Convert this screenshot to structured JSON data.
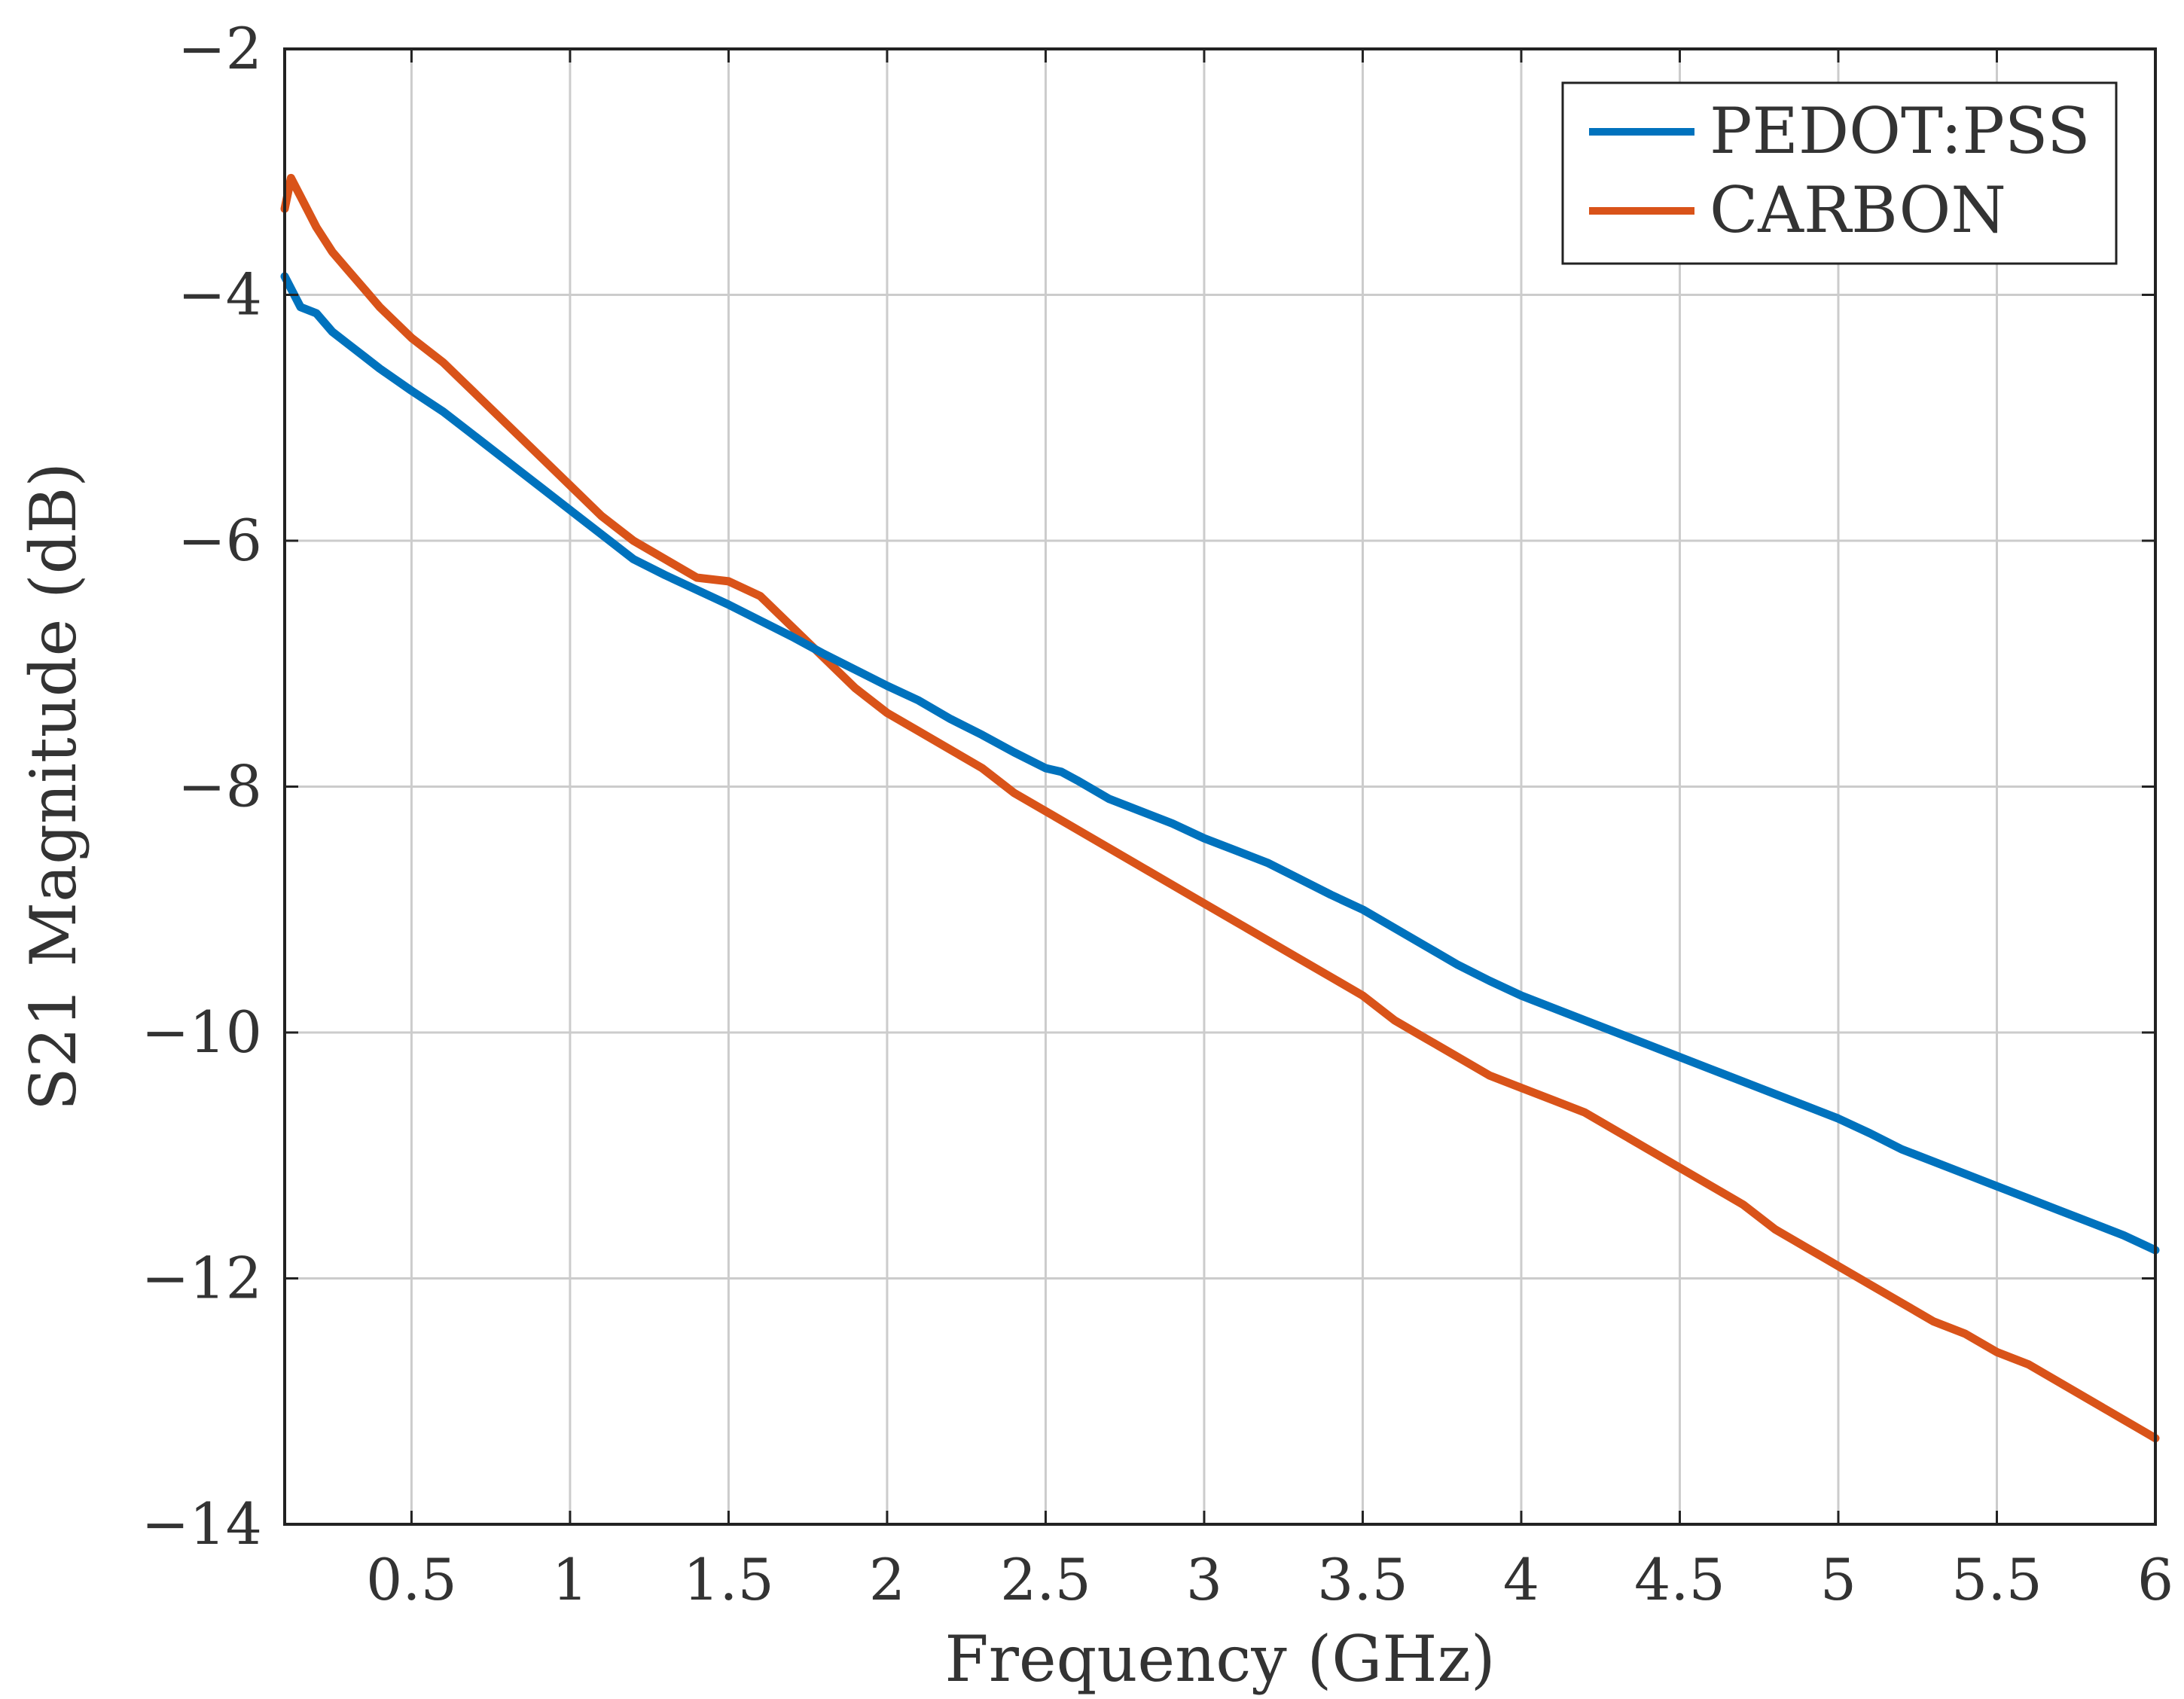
{
  "chart_data": {
    "type": "line",
    "title": "",
    "xlabel": "Frequency (GHz)",
    "ylabel": "S21 Magnitude (dB)",
    "xlim": [
      0.1,
      6
    ],
    "ylim": [
      -14,
      -2
    ],
    "grid": true,
    "legend_position": "top-right",
    "x_ticks": [
      {
        "value": 0.5,
        "label": "0.5"
      },
      {
        "value": 1,
        "label": "1"
      },
      {
        "value": 1.5,
        "label": "1.5"
      },
      {
        "value": 2,
        "label": "2"
      },
      {
        "value": 2.5,
        "label": "2.5"
      },
      {
        "value": 3,
        "label": "3"
      },
      {
        "value": 3.5,
        "label": "3.5"
      },
      {
        "value": 4,
        "label": "4"
      },
      {
        "value": 4.5,
        "label": "4.5"
      },
      {
        "value": 5,
        "label": "5"
      },
      {
        "value": 5.5,
        "label": "5.5"
      },
      {
        "value": 6,
        "label": "6"
      }
    ],
    "y_ticks": [
      {
        "value": -2,
        "label": "−2"
      },
      {
        "value": -4,
        "label": "−4"
      },
      {
        "value": -6,
        "label": "−6"
      },
      {
        "value": -8,
        "label": "−8"
      },
      {
        "value": -10,
        "label": "−10"
      },
      {
        "value": -12,
        "label": "−12"
      },
      {
        "value": -14,
        "label": "−14"
      }
    ],
    "series": [
      {
        "name": "PEDOT:PSS",
        "color": "#0072bd",
        "x": [
          0.1,
          0.15,
          0.2,
          0.25,
          0.3,
          0.35,
          0.4,
          0.5,
          0.6,
          0.7,
          0.8,
          0.9,
          1.0,
          1.1,
          1.2,
          1.3,
          1.4,
          1.5,
          1.6,
          1.7,
          1.8,
          1.9,
          2.0,
          2.1,
          2.2,
          2.3,
          2.4,
          2.5,
          2.55,
          2.6,
          2.7,
          2.8,
          2.9,
          3.0,
          3.1,
          3.2,
          3.3,
          3.4,
          3.5,
          3.6,
          3.7,
          3.8,
          3.9,
          4.0,
          4.1,
          4.2,
          4.3,
          4.4,
          4.5,
          4.6,
          4.7,
          4.8,
          4.9,
          5.0,
          5.1,
          5.2,
          5.3,
          5.4,
          5.5,
          5.6,
          5.7,
          5.8,
          5.9,
          6.0
        ],
        "values": [
          -3.85,
          -4.1,
          -4.15,
          -4.3,
          -4.4,
          -4.5,
          -4.6,
          -4.78,
          -4.95,
          -5.15,
          -5.35,
          -5.55,
          -5.75,
          -5.95,
          -6.15,
          -6.28,
          -6.4,
          -6.52,
          -6.65,
          -6.78,
          -6.92,
          -7.05,
          -7.18,
          -7.3,
          -7.45,
          -7.58,
          -7.72,
          -7.85,
          -7.88,
          -7.95,
          -8.1,
          -8.2,
          -8.3,
          -8.42,
          -8.52,
          -8.62,
          -8.75,
          -8.88,
          -9.0,
          -9.15,
          -9.3,
          -9.45,
          -9.58,
          -9.7,
          -9.8,
          -9.9,
          -10.0,
          -10.1,
          -10.2,
          -10.3,
          -10.4,
          -10.5,
          -10.6,
          -10.7,
          -10.82,
          -10.95,
          -11.05,
          -11.15,
          -11.25,
          -11.35,
          -11.45,
          -11.55,
          -11.65,
          -11.77
        ]
      },
      {
        "name": "CARBON",
        "color": "#d95319",
        "x": [
          0.1,
          0.12,
          0.15,
          0.2,
          0.25,
          0.3,
          0.35,
          0.4,
          0.5,
          0.6,
          0.7,
          0.8,
          0.9,
          1.0,
          1.1,
          1.2,
          1.3,
          1.4,
          1.5,
          1.6,
          1.7,
          1.8,
          1.9,
          2.0,
          2.1,
          2.2,
          2.3,
          2.4,
          2.5,
          2.6,
          2.7,
          2.8,
          2.9,
          3.0,
          3.1,
          3.2,
          3.3,
          3.4,
          3.5,
          3.6,
          3.7,
          3.8,
          3.9,
          4.0,
          4.1,
          4.2,
          4.3,
          4.4,
          4.5,
          4.6,
          4.7,
          4.8,
          4.9,
          5.0,
          5.1,
          5.2,
          5.3,
          5.4,
          5.5,
          5.6,
          5.7,
          5.8,
          5.9,
          6.0
        ],
        "values": [
          -3.3,
          -3.05,
          -3.2,
          -3.45,
          -3.65,
          -3.8,
          -3.95,
          -4.1,
          -4.35,
          -4.55,
          -4.8,
          -5.05,
          -5.3,
          -5.55,
          -5.8,
          -6.0,
          -6.15,
          -6.3,
          -6.33,
          -6.45,
          -6.7,
          -6.95,
          -7.2,
          -7.4,
          -7.55,
          -7.7,
          -7.85,
          -8.05,
          -8.2,
          -8.35,
          -8.5,
          -8.65,
          -8.8,
          -8.95,
          -9.1,
          -9.25,
          -9.4,
          -9.55,
          -9.7,
          -9.9,
          -10.05,
          -10.2,
          -10.35,
          -10.45,
          -10.55,
          -10.65,
          -10.8,
          -10.95,
          -11.1,
          -11.25,
          -11.4,
          -11.6,
          -11.75,
          -11.9,
          -12.05,
          -12.2,
          -12.35,
          -12.45,
          -12.6,
          -12.7,
          -12.85,
          -13.0,
          -13.15,
          -13.3
        ]
      }
    ]
  }
}
